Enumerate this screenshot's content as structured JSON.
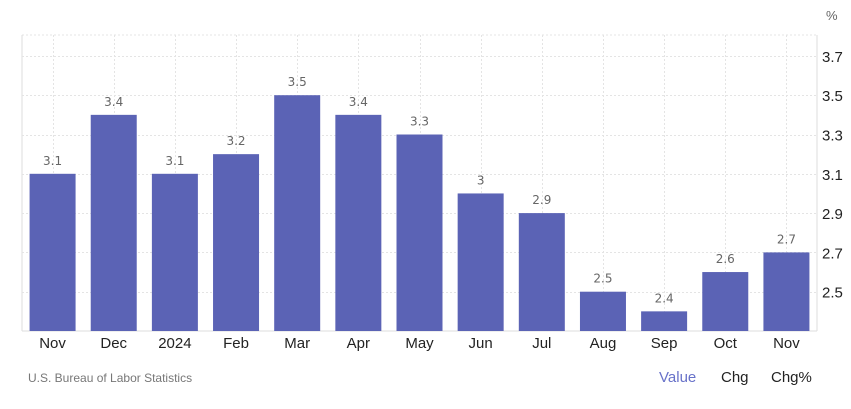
{
  "chart_data": {
    "type": "bar",
    "title": "",
    "xlabel": "",
    "ylabel": "%",
    "categories": [
      "Nov",
      "Dec",
      "2024",
      "Feb",
      "Mar",
      "Apr",
      "May",
      "Jun",
      "Jul",
      "Aug",
      "Sep",
      "Oct",
      "Nov"
    ],
    "values": [
      3.1,
      3.4,
      3.1,
      3.2,
      3.5,
      3.4,
      3.3,
      3.0,
      2.9,
      2.5,
      2.4,
      2.6,
      2.7
    ],
    "value_labels": [
      "3.1",
      "3.4",
      "3.1",
      "3.2",
      "3.5",
      "3.4",
      "3.3",
      "3",
      "2.9",
      "2.5",
      "2.4",
      "2.6",
      "2.7"
    ],
    "yticks": [
      2.5,
      2.7,
      2.9,
      3.1,
      3.3,
      3.5,
      3.7
    ],
    "ytick_labels": [
      "2.5",
      "2.7",
      "2.9",
      "3.1",
      "3.3",
      "3.5",
      "3.7"
    ],
    "ylim": [
      2.3,
      3.9
    ],
    "y_axis_position": "right",
    "grid": true,
    "legend": null,
    "bar_color": "#5b63b5"
  },
  "unit_label": "%",
  "source": "U.S. Bureau of Labor Statistics",
  "toggles": [
    {
      "label": "Value",
      "active": true
    },
    {
      "label": "Chg",
      "active": false
    },
    {
      "label": "Chg%",
      "active": false
    }
  ],
  "colors": {
    "bar": "#5b63b5",
    "grid": "#e4e4e4",
    "value_label": "#666666",
    "axis_label": "#222222",
    "toggle_active": "#6872c9",
    "source_text": "#777777"
  }
}
